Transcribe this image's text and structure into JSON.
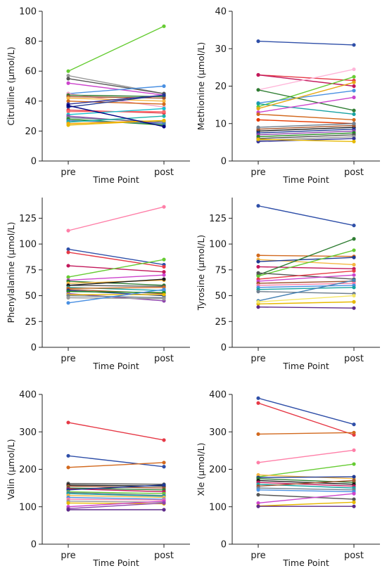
{
  "chart_data": [
    {
      "type": "line",
      "xlabel": "Time Point",
      "ylabel": "Citrulline (µmol/L)",
      "categories": [
        "pre",
        "post"
      ],
      "ylim": [
        0,
        100
      ],
      "yticks": [
        0,
        20,
        40,
        60,
        80,
        100
      ],
      "series": [
        {
          "color": "#66cc33",
          "values": [
            60,
            90
          ]
        },
        {
          "color": "#999999",
          "values": [
            57,
            45
          ]
        },
        {
          "color": "#555555",
          "values": [
            55,
            45
          ]
        },
        {
          "color": "#cc44cc",
          "values": [
            52,
            44
          ]
        },
        {
          "color": "#4a90e2",
          "values": [
            45,
            50
          ]
        },
        {
          "color": "#f5a3c7",
          "values": [
            45,
            36
          ]
        },
        {
          "color": "#2e7d32",
          "values": [
            44,
            43
          ]
        },
        {
          "color": "#a0522d",
          "values": [
            43,
            42
          ]
        },
        {
          "color": "#f5b642",
          "values": [
            42,
            40
          ]
        },
        {
          "color": "#d2691e",
          "values": [
            40,
            38
          ]
        },
        {
          "color": "#333399",
          "values": [
            38,
            44
          ]
        },
        {
          "color": "#1f3a93",
          "values": [
            36,
            44
          ]
        },
        {
          "color": "#e63946",
          "values": [
            34,
            32
          ]
        },
        {
          "color": "#ff6b6b",
          "values": [
            33,
            33
          ]
        },
        {
          "color": "#17becf",
          "values": [
            31,
            35
          ]
        },
        {
          "color": "#8e44ad",
          "values": [
            30,
            25
          ]
        },
        {
          "color": "#708090",
          "values": [
            29,
            26
          ]
        },
        {
          "color": "#228b22",
          "values": [
            28,
            24
          ]
        },
        {
          "color": "#4682b4",
          "values": [
            27,
            25
          ]
        },
        {
          "color": "#20b2aa",
          "values": [
            26,
            30
          ]
        },
        {
          "color": "#ffa500",
          "values": [
            25,
            27
          ]
        },
        {
          "color": "#e6b800",
          "values": [
            24,
            27
          ]
        },
        {
          "color": "#000080",
          "values": [
            37,
            23
          ]
        }
      ]
    },
    {
      "type": "line",
      "xlabel": "Time Point",
      "ylabel": "Methionine (µmol/L)",
      "categories": [
        "pre",
        "post"
      ],
      "ylim": [
        0,
        40
      ],
      "yticks": [
        0,
        10,
        20,
        30,
        40
      ],
      "series": [
        {
          "color": "#2f4fa8",
          "values": [
            32,
            31
          ]
        },
        {
          "color": "#e63946",
          "values": [
            23,
            21.5
          ]
        },
        {
          "color": "#c2185b",
          "values": [
            23,
            20
          ]
        },
        {
          "color": "#ffb6d9",
          "values": [
            19,
            24.5
          ]
        },
        {
          "color": "#66cc33",
          "values": [
            14.5,
            22.5
          ]
        },
        {
          "color": "#2e7d32",
          "values": [
            19,
            13.5
          ]
        },
        {
          "color": "#4a90e2",
          "values": [
            15.5,
            18.8
          ]
        },
        {
          "color": "#17a2a2",
          "values": [
            15.3,
            12.5
          ]
        },
        {
          "color": "#cc44cc",
          "values": [
            13,
            17
          ]
        },
        {
          "color": "#d2691e",
          "values": [
            12.5,
            11
          ]
        },
        {
          "color": "#e6a817",
          "values": [
            14,
            21
          ]
        },
        {
          "color": "#e63900",
          "values": [
            11,
            10
          ]
        },
        {
          "color": "#1a1a1a",
          "values": [
            8,
            9
          ]
        },
        {
          "color": "#1f3a93",
          "values": [
            7.5,
            8.5
          ]
        },
        {
          "color": "#8e44ad",
          "values": [
            7,
            8
          ]
        },
        {
          "color": "#228b22",
          "values": [
            6.5,
            7.5
          ]
        },
        {
          "color": "#555555",
          "values": [
            6,
            7
          ]
        },
        {
          "color": "#999999",
          "values": [
            5.5,
            6.5
          ]
        },
        {
          "color": "#333399",
          "values": [
            5.2,
            6
          ]
        },
        {
          "color": "#e6b800",
          "values": [
            5.8,
            5.2
          ]
        },
        {
          "color": "#a0522d",
          "values": [
            8.5,
            9.5
          ]
        },
        {
          "color": "#708090",
          "values": [
            9,
            10
          ]
        }
      ]
    },
    {
      "type": "line",
      "xlabel": "Time Point",
      "ylabel": "Phenylalanine (µmol/L)",
      "categories": [
        "pre",
        "post"
      ],
      "ylim": [
        0,
        145
      ],
      "yticks": [
        0,
        25,
        50,
        75,
        100,
        125
      ],
      "series": [
        {
          "color": "#ff7fa8",
          "values": [
            113,
            136
          ]
        },
        {
          "color": "#2f4fa8",
          "values": [
            95,
            80
          ]
        },
        {
          "color": "#e63946",
          "values": [
            92,
            78
          ]
        },
        {
          "color": "#c2185b",
          "values": [
            79,
            73
          ]
        },
        {
          "color": "#66cc33",
          "values": [
            68,
            85
          ]
        },
        {
          "color": "#cc44cc",
          "values": [
            65,
            70
          ]
        },
        {
          "color": "#2e7d32",
          "values": [
            64,
            60
          ]
        },
        {
          "color": "#f5b642",
          "values": [
            62,
            65
          ]
        },
        {
          "color": "#555555",
          "values": [
            60,
            59
          ]
        },
        {
          "color": "#1a1a1a",
          "values": [
            60,
            66
          ]
        },
        {
          "color": "#17a2a2",
          "values": [
            58,
            55
          ]
        },
        {
          "color": "#d2691e",
          "values": [
            57,
            58
          ]
        },
        {
          "color": "#a0522d",
          "values": [
            56,
            52
          ]
        },
        {
          "color": "#1f3a93",
          "values": [
            55,
            50
          ]
        },
        {
          "color": "#228b22",
          "values": [
            54,
            53
          ]
        },
        {
          "color": "#8e44ad",
          "values": [
            52,
            45
          ]
        },
        {
          "color": "#e6b800",
          "values": [
            51,
            51
          ]
        },
        {
          "color": "#708090",
          "values": [
            50,
            48
          ]
        },
        {
          "color": "#999999",
          "values": [
            48,
            47
          ]
        },
        {
          "color": "#4a90e2",
          "values": [
            43,
            56
          ]
        }
      ]
    },
    {
      "type": "line",
      "xlabel": "Time Point",
      "ylabel": "Tyrosine (µmol/L)",
      "categories": [
        "pre",
        "post"
      ],
      "ylim": [
        0,
        145
      ],
      "yticks": [
        0,
        25,
        50,
        75,
        100,
        125
      ],
      "series": [
        {
          "color": "#2f4fa8",
          "values": [
            137,
            118
          ]
        },
        {
          "color": "#d2691e",
          "values": [
            89,
            88
          ]
        },
        {
          "color": "#f5b642",
          "values": [
            85,
            80
          ]
        },
        {
          "color": "#1f3a93",
          "values": [
            83,
            87
          ]
        },
        {
          "color": "#c2185b",
          "values": [
            78,
            76
          ]
        },
        {
          "color": "#2e7d32",
          "values": [
            70,
            105
          ]
        },
        {
          "color": "#66cc33",
          "values": [
            69,
            94
          ]
        },
        {
          "color": "#555555",
          "values": [
            72,
            66
          ]
        },
        {
          "color": "#e63946",
          "values": [
            66,
            74
          ]
        },
        {
          "color": "#cc44cc",
          "values": [
            64,
            70
          ]
        },
        {
          "color": "#a0522d",
          "values": [
            62,
            64
          ]
        },
        {
          "color": "#ff7fa8",
          "values": [
            60,
            62
          ]
        },
        {
          "color": "#4a90e2",
          "values": [
            58,
            60
          ]
        },
        {
          "color": "#17a2a2",
          "values": [
            56,
            58
          ]
        },
        {
          "color": "#708090",
          "values": [
            54,
            52
          ]
        },
        {
          "color": "#4682b4",
          "values": [
            45,
            65
          ]
        },
        {
          "color": "#e6b800",
          "values": [
            42,
            44
          ]
        },
        {
          "color": "#f5e663",
          "values": [
            44,
            50
          ]
        },
        {
          "color": "#5e2b8a",
          "values": [
            39,
            38
          ]
        }
      ]
    },
    {
      "type": "line",
      "xlabel": "Time Point",
      "ylabel": "Valin (µmol/L)",
      "categories": [
        "pre",
        "post"
      ],
      "ylim": [
        0,
        400
      ],
      "yticks": [
        0,
        100,
        200,
        300,
        400
      ],
      "series": [
        {
          "color": "#e63946",
          "values": [
            325,
            278
          ]
        },
        {
          "color": "#2f4fa8",
          "values": [
            236,
            207
          ]
        },
        {
          "color": "#d2691e",
          "values": [
            205,
            218
          ]
        },
        {
          "color": "#555555",
          "values": [
            162,
            160
          ]
        },
        {
          "color": "#1a1a1a",
          "values": [
            158,
            155
          ]
        },
        {
          "color": "#a0522d",
          "values": [
            155,
            150
          ]
        },
        {
          "color": "#2e7d32",
          "values": [
            150,
            145
          ]
        },
        {
          "color": "#c2185b",
          "values": [
            148,
            140
          ]
        },
        {
          "color": "#1f3a93",
          "values": [
            145,
            158
          ]
        },
        {
          "color": "#66cc33",
          "values": [
            140,
            135
          ]
        },
        {
          "color": "#708090",
          "values": [
            138,
            130
          ]
        },
        {
          "color": "#17a2a2",
          "values": [
            135,
            128
          ]
        },
        {
          "color": "#f5b642",
          "values": [
            130,
            125
          ]
        },
        {
          "color": "#4a90e2",
          "values": [
            125,
            120
          ]
        },
        {
          "color": "#ff7fa8",
          "values": [
            120,
            118
          ]
        },
        {
          "color": "#999999",
          "values": [
            115,
            112
          ]
        },
        {
          "color": "#e6b800",
          "values": [
            110,
            108
          ]
        },
        {
          "color": "#cc44cc",
          "values": [
            100,
            115
          ]
        },
        {
          "color": "#8e44ad",
          "values": [
            95,
            110
          ]
        },
        {
          "color": "#5e2b8a",
          "values": [
            92,
            92
          ]
        }
      ]
    },
    {
      "type": "line",
      "xlabel": "Time Point",
      "ylabel": "Xle (µmol/L)",
      "categories": [
        "pre",
        "post"
      ],
      "ylim": [
        0,
        400
      ],
      "yticks": [
        0,
        100,
        200,
        300,
        400
      ],
      "series": [
        {
          "color": "#2f4fa8",
          "values": [
            390,
            320
          ]
        },
        {
          "color": "#e63946",
          "values": [
            377,
            292
          ]
        },
        {
          "color": "#d2691e",
          "values": [
            294,
            298
          ]
        },
        {
          "color": "#ff7fa8",
          "values": [
            218,
            251
          ]
        },
        {
          "color": "#66cc33",
          "values": [
            180,
            214
          ]
        },
        {
          "color": "#f5b642",
          "values": [
            185,
            175
          ]
        },
        {
          "color": "#1f3a93",
          "values": [
            178,
            180
          ]
        },
        {
          "color": "#2e7d32",
          "values": [
            175,
            165
          ]
        },
        {
          "color": "#1a1a1a",
          "values": [
            170,
            160
          ]
        },
        {
          "color": "#c2185b",
          "values": [
            165,
            155
          ]
        },
        {
          "color": "#17a2a2",
          "values": [
            160,
            150
          ]
        },
        {
          "color": "#a0522d",
          "values": [
            155,
            170
          ]
        },
        {
          "color": "#708090",
          "values": [
            150,
            145
          ]
        },
        {
          "color": "#4a90e2",
          "values": [
            145,
            140
          ]
        },
        {
          "color": "#555555",
          "values": [
            132,
            120
          ]
        },
        {
          "color": "#cc44cc",
          "values": [
            110,
            135
          ]
        },
        {
          "color": "#e6b800",
          "values": [
            102,
            112
          ]
        },
        {
          "color": "#5e2b8a",
          "values": [
            101,
            101
          ]
        }
      ]
    }
  ]
}
